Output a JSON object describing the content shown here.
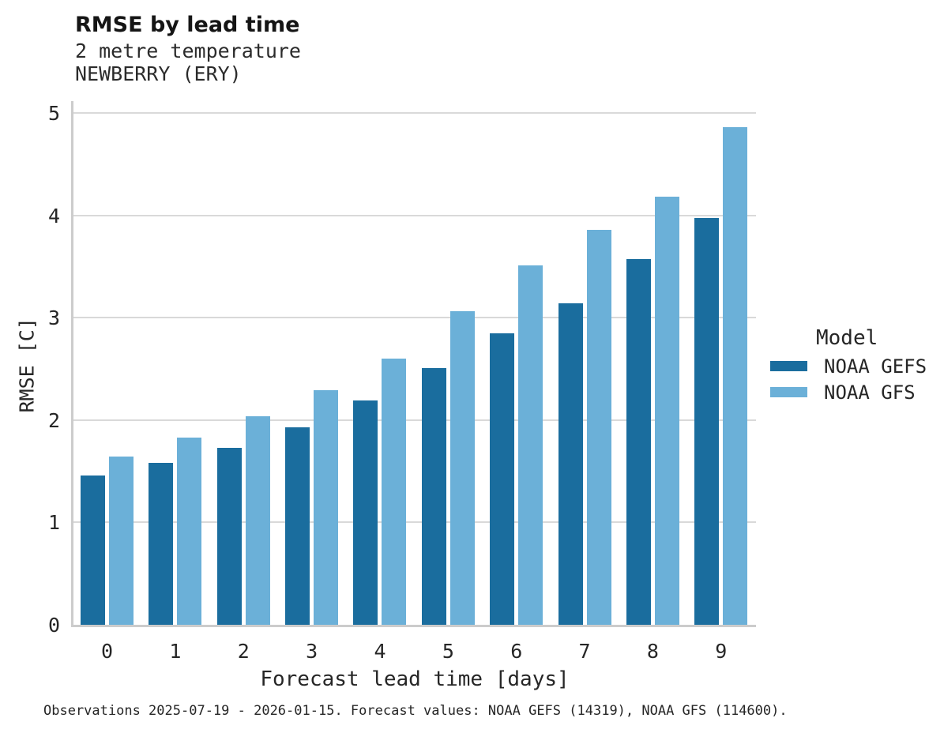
{
  "header": {
    "title": "RMSE by lead time",
    "subtitle_line1": "2 metre temperature",
    "subtitle_line2": "NEWBERRY (ERY)"
  },
  "chart_data": {
    "type": "bar",
    "title": "RMSE by lead time",
    "subtitle": [
      "2 metre temperature",
      "NEWBERRY (ERY)"
    ],
    "categories": [
      "0",
      "1",
      "2",
      "3",
      "4",
      "5",
      "6",
      "7",
      "8",
      "9"
    ],
    "series": [
      {
        "name": "NOAA GEFS",
        "color": "#1a6d9e",
        "values": [
          1.46,
          1.58,
          1.73,
          1.93,
          2.19,
          2.51,
          2.85,
          3.14,
          3.57,
          3.97
        ]
      },
      {
        "name": "NOAA GFS",
        "color": "#6bb0d8",
        "values": [
          1.64,
          1.83,
          2.04,
          2.29,
          2.6,
          3.06,
          3.51,
          3.86,
          4.18,
          4.86
        ]
      }
    ],
    "xlabel": "Forecast lead time [days]",
    "ylabel": "RMSE [C]",
    "ylim": [
      0,
      5
    ],
    "yticks": [
      0,
      1,
      2,
      3,
      4,
      5
    ],
    "grid": "horizontal-only",
    "legend_title": "Model",
    "legend_position": "right",
    "bar_grouping": "grouped-pairs"
  },
  "footer": {
    "caption": "Observations 2025-07-19 - 2026-01-15. Forecast values: NOAA GEFS (14319), NOAA GFS (114600)."
  },
  "colors": {
    "series_dark": "#1a6d9e",
    "series_light": "#6bb0d8",
    "gridline": "#d9d9d9",
    "axis_spine": "#cccccc",
    "text": "#262626",
    "title_text": "#151515",
    "background": "#ffffff"
  }
}
